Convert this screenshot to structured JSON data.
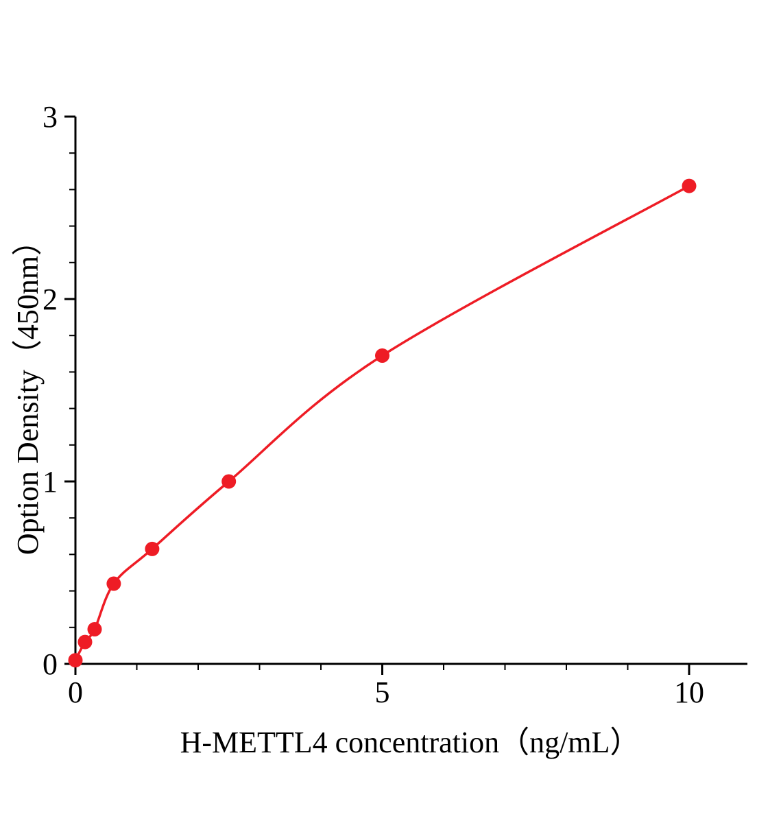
{
  "page": {
    "background_color": "#ffffff",
    "text_color": "#000000"
  },
  "chart_data": {
    "type": "scatter",
    "title": "",
    "xlabel": "H-METTL4 concentration（ng/mL）",
    "ylabel": "Option Density（450nm）",
    "x": [
      0,
      0.156,
      0.3125,
      0.625,
      1.25,
      2.5,
      5,
      10
    ],
    "y": [
      0.02,
      0.12,
      0.19,
      0.44,
      0.63,
      1.0,
      1.69,
      2.62
    ],
    "xlim": [
      0,
      10.95
    ],
    "ylim": [
      0,
      3
    ],
    "x_major_ticks": [
      0,
      5,
      10
    ],
    "x_tick_labels": [
      "0",
      "5",
      "10"
    ],
    "y_major_ticks": [
      0,
      1,
      2,
      3
    ],
    "y_tick_labels": [
      "0",
      "1",
      "2",
      "3"
    ],
    "x_minor_step": 1,
    "y_minor_step": 0.2,
    "grid": false,
    "legend_position": "none",
    "curve_style": "smooth",
    "marker_color": "#ee1c25",
    "line_color": "#ee1c25",
    "axis_color": "#000000"
  }
}
